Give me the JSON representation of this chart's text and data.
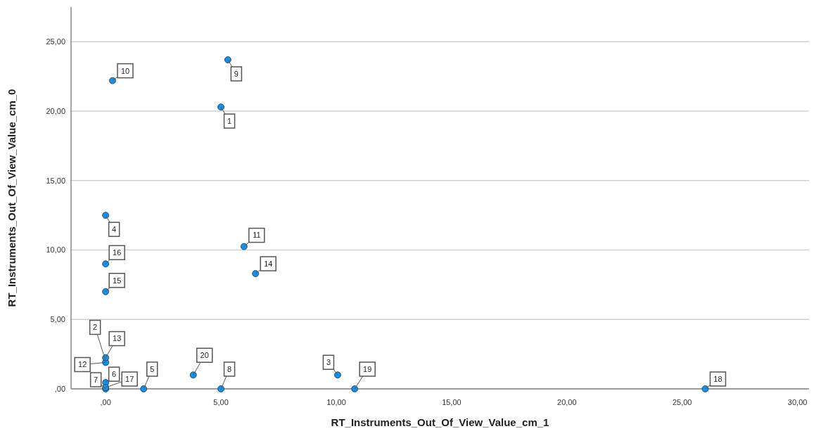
{
  "chart_data": {
    "type": "scatter",
    "xlabel": "RT_Instruments_Out_Of_View_Value_cm_1",
    "ylabel": "RT_Instruments_Out_Of_View_Value_cm_0",
    "x": [
      5.0,
      null,
      10.06,
      0,
      1.65,
      0,
      0,
      5.0,
      5.3,
      0.3,
      6.0,
      0,
      0,
      6.5,
      0,
      0,
      0,
      26.0,
      10.8,
      3.8
    ],
    "series": [
      {
        "color": "#1a8fe3",
        "values": [
          20.3,
          null,
          1.0,
          12.5,
          0,
          0.45,
          0,
          0,
          23.7,
          22.2,
          10.25,
          1.9,
          2.25,
          8.3,
          7.0,
          9.0,
          0.1,
          0,
          0,
          1.0
        ]
      }
    ],
    "xlim": [
      -1.5,
      30.5
    ],
    "ylim": [
      0,
      27.5
    ],
    "xticks": [
      {
        "value": 0,
        "label": ",00"
      },
      {
        "value": 5,
        "label": "5,00"
      },
      {
        "value": 10,
        "label": "10,00"
      },
      {
        "value": 15,
        "label": "15,00"
      },
      {
        "value": 20,
        "label": "20,00"
      },
      {
        "value": 25,
        "label": "25,00"
      },
      {
        "value": 30,
        "label": "30,00"
      }
    ],
    "yticks": [
      {
        "value": 0,
        "label": ",00"
      },
      {
        "value": 5,
        "label": "5,00"
      },
      {
        "value": 10,
        "label": "10,00"
      },
      {
        "value": 15,
        "label": "15,00"
      },
      {
        "value": 20,
        "label": "20,00"
      },
      {
        "value": 25,
        "label": "25,00"
      }
    ],
    "grid": "y",
    "marker": "circle",
    "annotations": [
      {
        "text": "1",
        "x": 5.0,
        "y": 20.3
      },
      {
        "text": "2",
        "x": 0,
        "y": 2.0
      },
      {
        "text": "3",
        "x": 10.06,
        "y": 1.0
      },
      {
        "text": "4",
        "x": 0,
        "y": 12.5
      },
      {
        "text": "5",
        "x": 1.65,
        "y": 0
      },
      {
        "text": "6",
        "x": 0,
        "y": 0.45
      },
      {
        "text": "7",
        "x": 0,
        "y": 0
      },
      {
        "text": "8",
        "x": 5.0,
        "y": 0
      },
      {
        "text": "9",
        "x": 5.3,
        "y": 23.7
      },
      {
        "text": "10",
        "x": 0.3,
        "y": 22.2
      },
      {
        "text": "11",
        "x": 6.0,
        "y": 10.25
      },
      {
        "text": "12",
        "x": 0,
        "y": 1.9
      },
      {
        "text": "13",
        "x": 0,
        "y": 2.25
      },
      {
        "text": "14",
        "x": 6.5,
        "y": 8.3
      },
      {
        "text": "15",
        "x": 0,
        "y": 7.0
      },
      {
        "text": "16",
        "x": 0,
        "y": 9.0
      },
      {
        "text": "17",
        "x": 0,
        "y": 0.1
      },
      {
        "text": "18",
        "x": 26.0,
        "y": 0
      },
      {
        "text": "19",
        "x": 10.8,
        "y": 0
      },
      {
        "text": "20",
        "x": 3.8,
        "y": 1.0
      }
    ]
  }
}
